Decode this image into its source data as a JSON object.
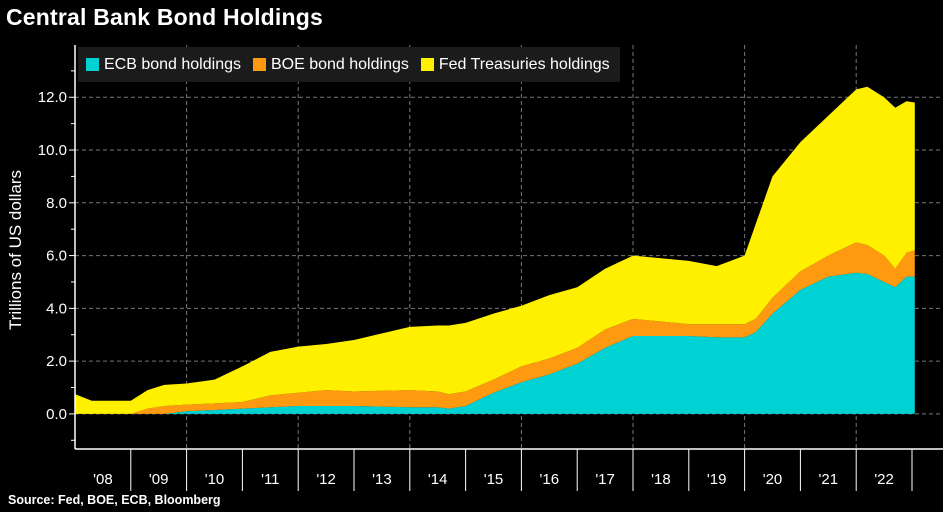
{
  "chart_data": {
    "type": "area",
    "stacked": true,
    "title": "Central Bank Bond Holdings",
    "ylabel": "Trillions of US dollars",
    "xlabel": "",
    "source": "Source: Fed, BOE, ECB, Bloomberg",
    "ylim": [
      -1.33,
      13.98
    ],
    "xlim": [
      2008,
      2023.5
    ],
    "yticks": [
      0,
      2,
      4,
      6,
      8,
      10,
      12
    ],
    "ytick_labels": [
      "0.0",
      "2.0",
      "4.0",
      "6.0",
      "8.0",
      "10.0",
      "12.0"
    ],
    "xtick_labels": [
      "'08",
      "'09",
      "'10",
      "'11",
      "'12",
      "'13",
      "'14",
      "'15",
      "'16",
      "'17",
      "'18",
      "'19",
      "'20",
      "'21",
      "'22"
    ],
    "grid": true,
    "legend_position": "top-left",
    "x": [
      2008,
      2008.3,
      2009,
      2009.3,
      2009.6,
      2010,
      2010.5,
      2011,
      2011.5,
      2012,
      2012.5,
      2013,
      2014,
      2014.5,
      2014.7,
      2015,
      2015.5,
      2016,
      2016.5,
      2017,
      2017.5,
      2018,
      2018.5,
      2019,
      2019.5,
      2020,
      2020.2,
      2020.5,
      2021,
      2021.5,
      2022,
      2022.2,
      2022.5,
      2022.7,
      2022.9,
      2023.05
    ],
    "series": [
      {
        "name": "ECB bond holdings",
        "color": "#00d2d4",
        "values": [
          0,
          0,
          0,
          0,
          0,
          0.1,
          0.15,
          0.2,
          0.25,
          0.3,
          0.3,
          0.3,
          0.25,
          0.25,
          0.2,
          0.3,
          0.8,
          1.2,
          1.5,
          1.9,
          2.5,
          2.95,
          2.95,
          2.95,
          2.9,
          2.9,
          3.1,
          3.8,
          4.7,
          5.2,
          5.35,
          5.3,
          5.0,
          4.8,
          5.2,
          5.2
        ]
      },
      {
        "name": "BOE bond holdings",
        "color": "#ff9a10",
        "values": [
          0,
          0,
          0,
          0.2,
          0.3,
          0.25,
          0.25,
          0.25,
          0.45,
          0.5,
          0.6,
          0.55,
          0.65,
          0.6,
          0.55,
          0.55,
          0.5,
          0.6,
          0.6,
          0.6,
          0.7,
          0.65,
          0.55,
          0.45,
          0.5,
          0.5,
          0.5,
          0.6,
          0.7,
          0.8,
          1.15,
          1.1,
          1.0,
          0.7,
          0.9,
          1.0
        ]
      },
      {
        "name": "Fed Treasuries holdings",
        "color": "#fff000",
        "values": [
          0.75,
          0.5,
          0.5,
          0.7,
          0.8,
          0.8,
          0.9,
          1.35,
          1.65,
          1.75,
          1.75,
          1.95,
          2.4,
          2.5,
          2.6,
          2.6,
          2.5,
          2.3,
          2.4,
          2.3,
          2.3,
          2.4,
          2.4,
          2.4,
          2.2,
          2.6,
          3.6,
          4.6,
          4.9,
          5.3,
          5.8,
          6.0,
          6.0,
          6.1,
          5.75,
          5.6
        ]
      }
    ]
  }
}
